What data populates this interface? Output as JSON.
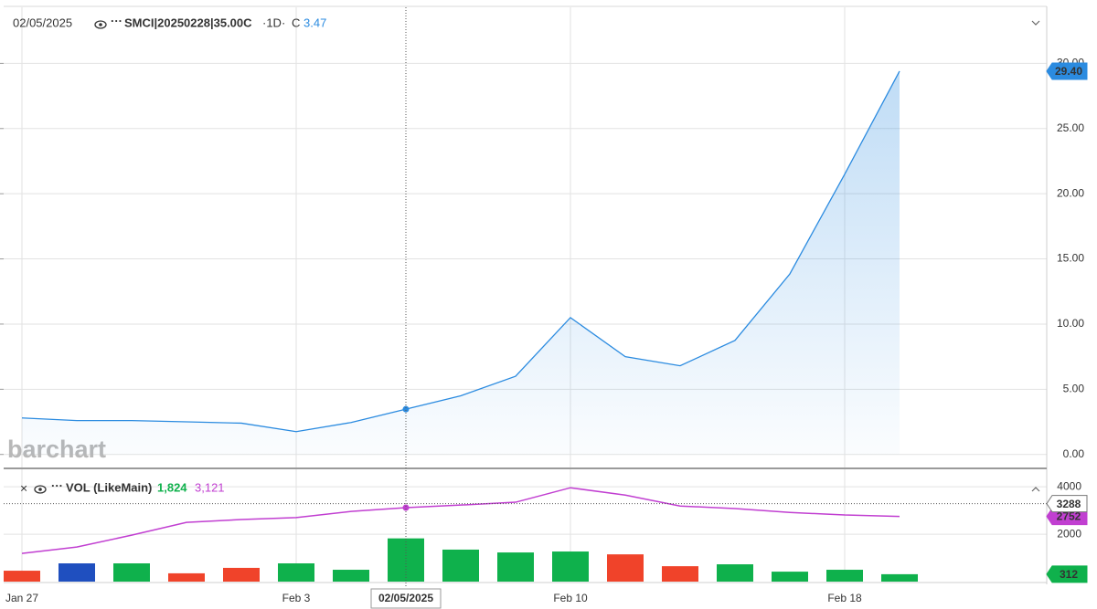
{
  "header": {
    "date": "02/05/2025",
    "symbol": "SMCI|20250228|35.00C",
    "interval": "·1D·",
    "close_label": "C",
    "close_value": "3.47"
  },
  "watermark": "barchart",
  "crosshair": {
    "index": 7,
    "label": "02/05/2025"
  },
  "chart_data": [
    {
      "type": "area",
      "categories": [
        "Jan 27",
        null,
        null,
        null,
        null,
        "Feb 3",
        null,
        null,
        null,
        null,
        "Feb 10",
        null,
        null,
        null,
        null,
        "Feb 18",
        null
      ],
      "values": [
        2.8,
        2.6,
        2.6,
        2.5,
        2.4,
        1.75,
        2.45,
        3.47,
        4.5,
        6.0,
        10.5,
        7.5,
        6.8,
        8.75,
        13.85,
        21.5,
        29.4
      ],
      "value_labels": [
        null,
        null,
        null,
        null,
        null,
        null,
        null,
        null,
        null,
        null,
        null,
        null,
        null,
        null,
        null,
        null,
        "29.40"
      ],
      "color": "#2b8be0",
      "ylim": [
        -1,
        34.3
      ],
      "yticks": [
        {
          "value": 0,
          "label": "0.00"
        },
        {
          "value": 5,
          "label": "5.00"
        },
        {
          "value": 10,
          "label": "10.00"
        },
        {
          "value": 15,
          "label": "15.00"
        },
        {
          "value": 20,
          "label": "20.00"
        },
        {
          "value": 25,
          "label": "25.00"
        },
        {
          "value": 30,
          "label": "30.00"
        }
      ],
      "grid": true
    },
    {
      "type": "bar",
      "legend": "VOL (LikeMain)",
      "ylim": [
        0,
        4700
      ],
      "yticks": [
        2000,
        4000
      ],
      "crosshair_value": 3288,
      "series": [
        {
          "type": "bar",
          "values": [
            460,
            770,
            770,
            350,
            580,
            770,
            500,
            1824,
            1350,
            1230,
            1270,
            1150,
            650,
            730,
            420,
            500,
            312
          ],
          "value_labels": [
            null,
            null,
            null,
            null,
            null,
            null,
            null,
            "1,824",
            null,
            null,
            null,
            null,
            null,
            null,
            null,
            null,
            null
          ],
          "colors": [
            "#f0432a",
            "#1f4fbf",
            "#0fb14c",
            "#f0432a",
            "#f0432a",
            "#0fb14c",
            "#0fb14c",
            "#0fb14c",
            "#0fb14c",
            "#0fb14c",
            "#0fb14c",
            "#f0432a",
            "#f0432a",
            "#0fb14c",
            "#0fb14c",
            "#0fb14c",
            "#0fb14c"
          ]
        },
        {
          "type": "line",
          "values": [
            1190,
            1460,
            1960,
            2500,
            2620,
            2700,
            2960,
            3121,
            3230,
            3350,
            3960,
            3650,
            3190,
            3080,
            2920,
            2810,
            2752
          ],
          "value_labels": [
            null,
            null,
            null,
            null,
            null,
            null,
            null,
            "3,121",
            null,
            null,
            null,
            null,
            null,
            null,
            null,
            null,
            null
          ],
          "color": "#c13fd1"
        }
      ]
    }
  ]
}
